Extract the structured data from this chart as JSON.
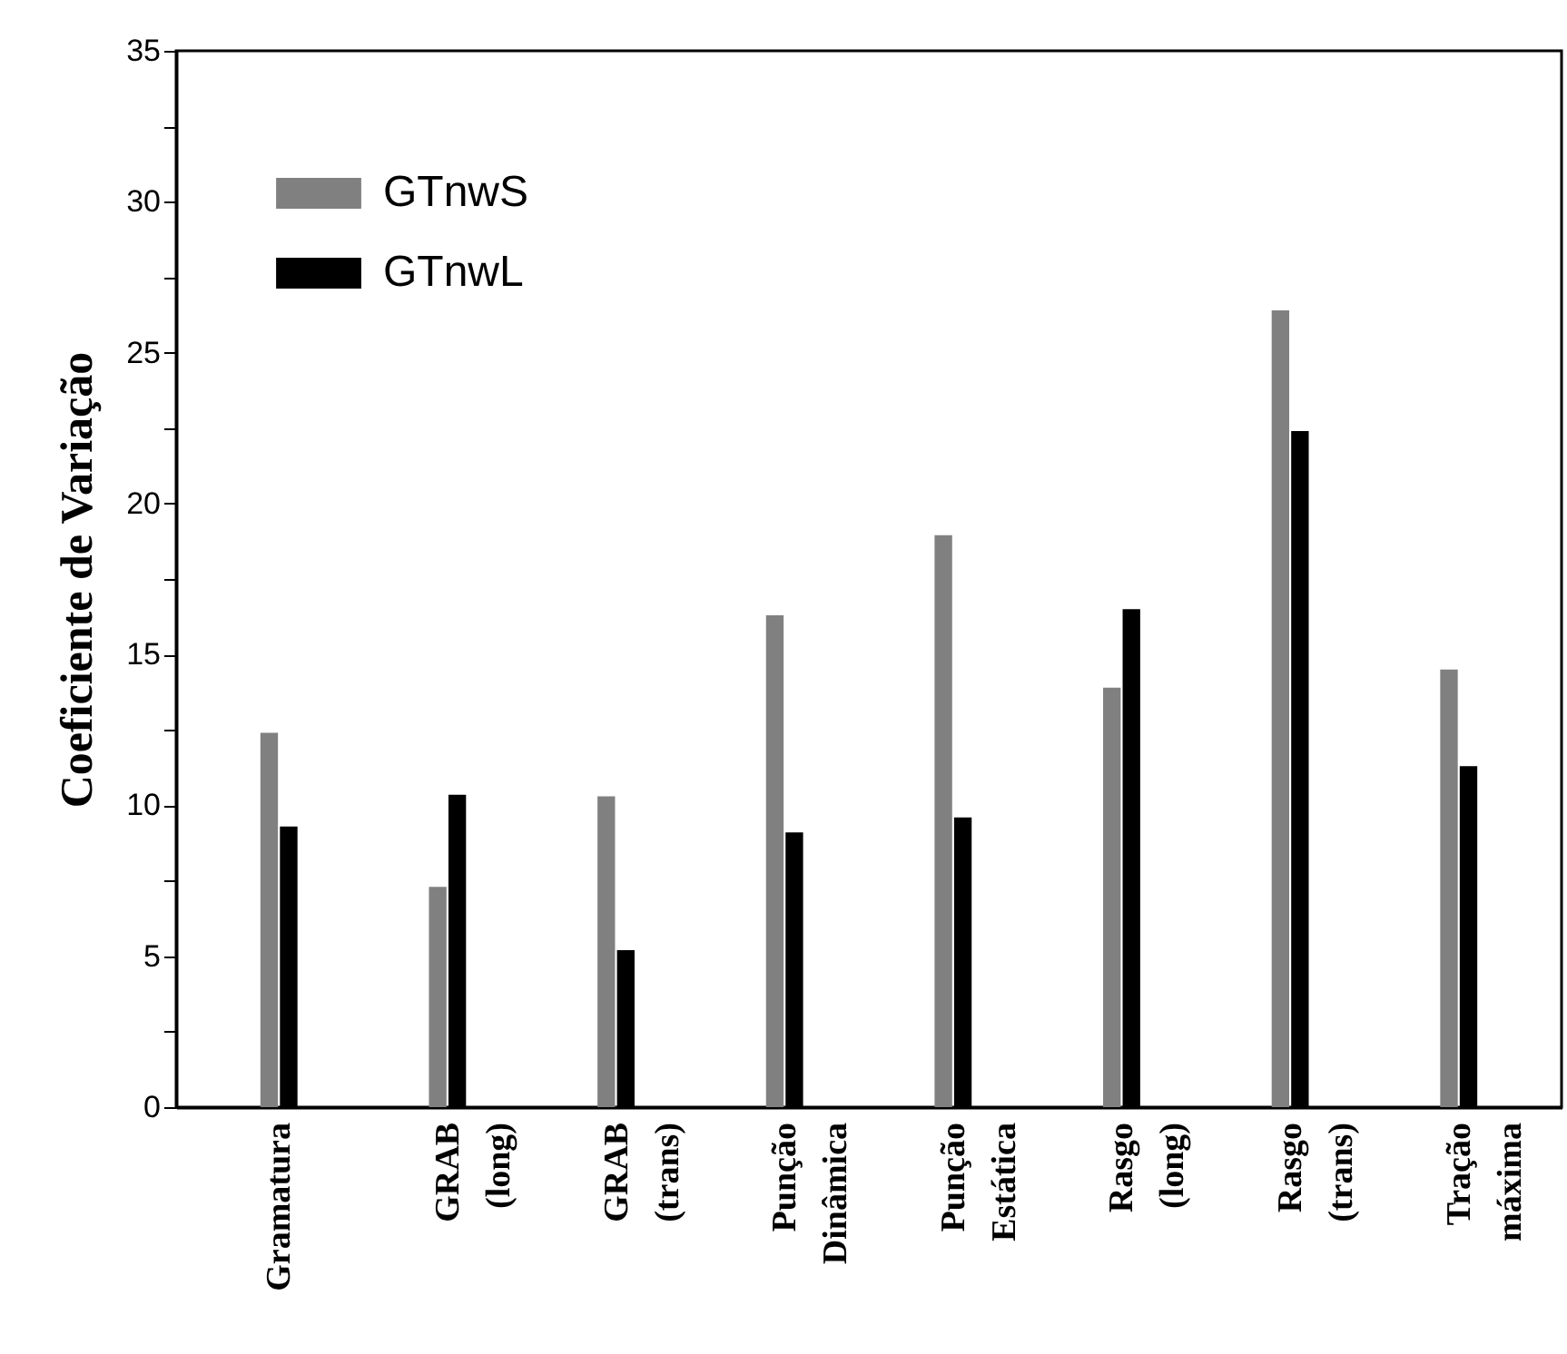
{
  "chart_data": {
    "type": "bar",
    "ylabel": "Coeficiente de Variação",
    "categories": [
      "Gramatura",
      "GRAB (long)",
      "GRAB (trans)",
      "Punção Dinâmica",
      "Punção Estática",
      "Rasgo (long)",
      "Rasgo (trans)",
      "Tração máxima"
    ],
    "series": [
      {
        "name": "GTnwS",
        "color": "#808080",
        "values": [
          12.4,
          7.3,
          10.3,
          16.3,
          18.95,
          13.9,
          26.4,
          14.5
        ]
      },
      {
        "name": "GTnwL",
        "color": "#000000",
        "values": [
          9.3,
          10.35,
          5.2,
          9.1,
          9.6,
          16.5,
          22.4,
          11.3
        ]
      }
    ],
    "ylim": [
      0,
      35
    ],
    "yticks": [
      0,
      {
        "value": 2.5,
        "label": null
      },
      5,
      {
        "value": 7.5,
        "label": null
      },
      10,
      {
        "value": 12.5,
        "label": null
      },
      15,
      {
        "value": 17.5,
        "label": null
      },
      20,
      {
        "value": 22.5,
        "label": null
      },
      25,
      {
        "value": 27.5,
        "label": null
      },
      30,
      {
        "value": 32.5,
        "label": null
      },
      35
    ],
    "legend": "top left"
  }
}
